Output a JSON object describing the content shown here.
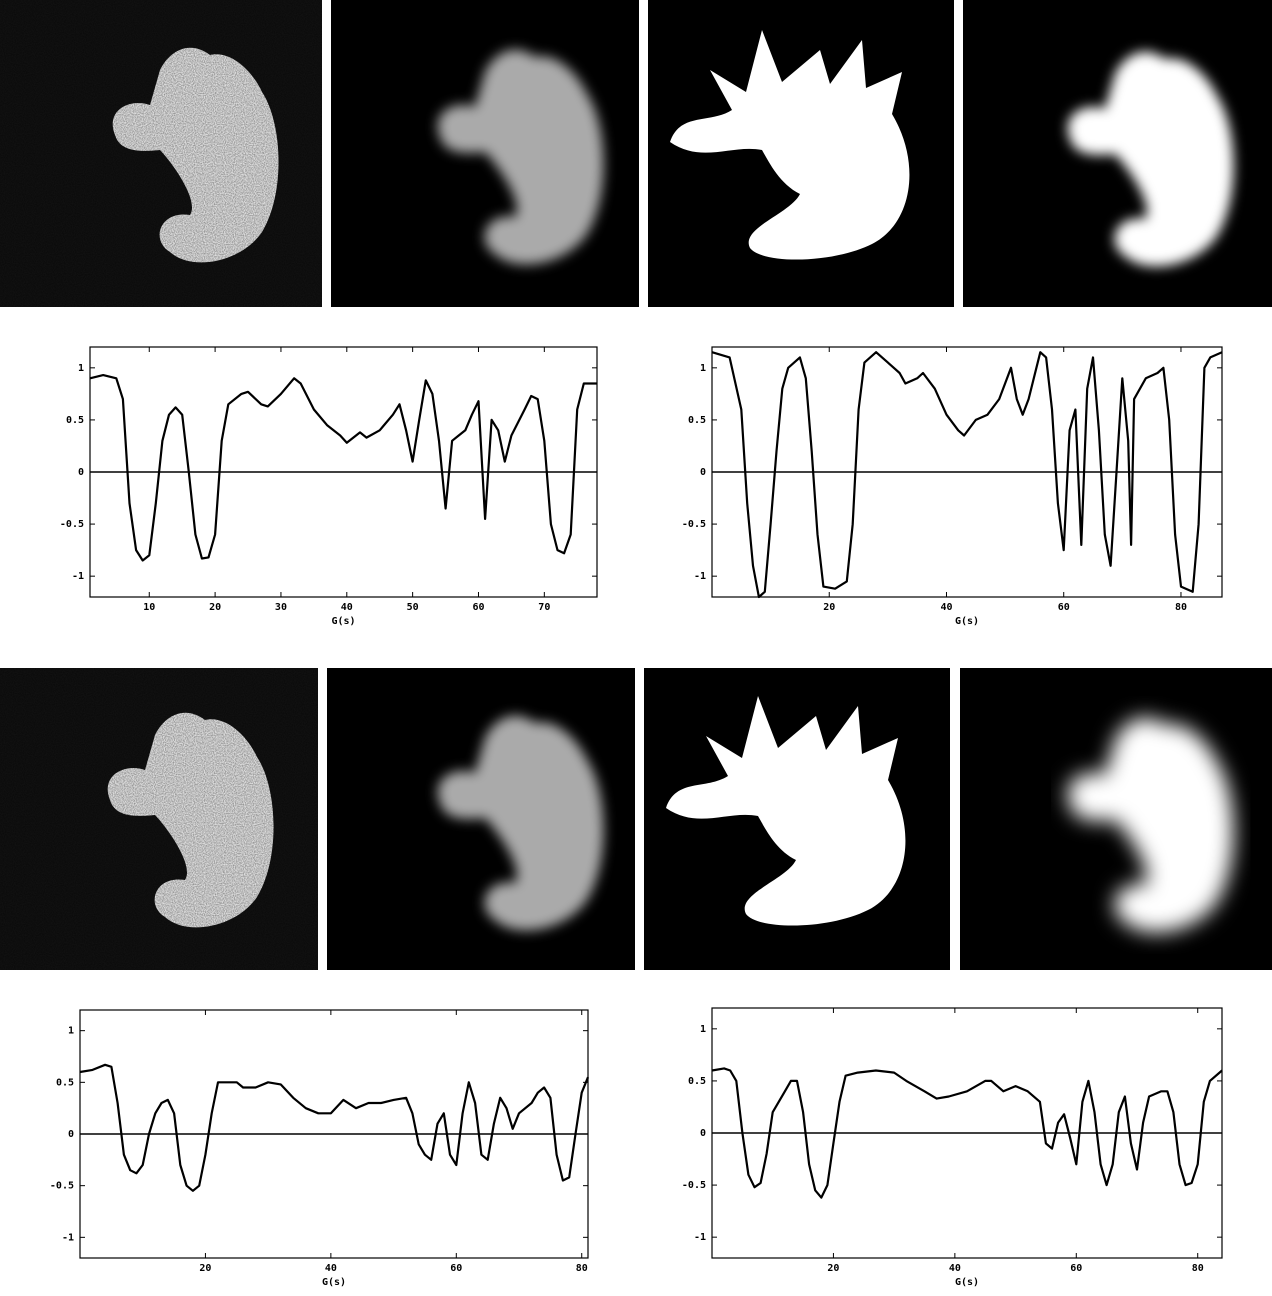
{
  "chart_data": [
    {
      "type": "line",
      "xlabel": "G(s)",
      "color": "#000000",
      "x": [
        1,
        3,
        5,
        6,
        7,
        8,
        9,
        10,
        11,
        12,
        13,
        14,
        15,
        16,
        17,
        18,
        19,
        20,
        21,
        22,
        24,
        25,
        27,
        28,
        30,
        32,
        33,
        35,
        37,
        39,
        40,
        42,
        43,
        45,
        47,
        48,
        49,
        50,
        51,
        52,
        53,
        54,
        55,
        56,
        57,
        58,
        59,
        60,
        61,
        62,
        63,
        64,
        65,
        67,
        68,
        69,
        70,
        71,
        72,
        73,
        74,
        75,
        76,
        78
      ],
      "values": [
        0.9,
        0.93,
        0.9,
        0.7,
        -0.3,
        -0.75,
        -0.85,
        -0.8,
        -0.3,
        0.3,
        0.55,
        0.62,
        0.55,
        0.0,
        -0.6,
        -0.83,
        -0.82,
        -0.6,
        0.3,
        0.65,
        0.75,
        0.77,
        0.65,
        0.63,
        0.75,
        0.9,
        0.85,
        0.6,
        0.45,
        0.35,
        0.28,
        0.38,
        0.33,
        0.4,
        0.55,
        0.65,
        0.4,
        0.1,
        0.5,
        0.88,
        0.75,
        0.3,
        -0.35,
        0.3,
        0.35,
        0.4,
        0.55,
        0.68,
        -0.45,
        0.5,
        0.4,
        0.1,
        0.35,
        0.6,
        0.73,
        0.7,
        0.3,
        -0.5,
        -0.75,
        -0.78,
        -0.6,
        0.6,
        0.85,
        0.85
      ],
      "xlim": [
        1,
        78
      ],
      "ylim": [
        -1.2,
        1.2
      ],
      "xticks": [
        10,
        20,
        30,
        40,
        50,
        60,
        70
      ],
      "yticks": [
        -1,
        -0.5,
        0,
        0.5,
        1
      ]
    },
    {
      "type": "line",
      "xlabel": "G(s)",
      "color": "#000000",
      "x": [
        0,
        3,
        5,
        6,
        7,
        8,
        9,
        10,
        11,
        12,
        13,
        15,
        16,
        17,
        18,
        19,
        21,
        23,
        24,
        25,
        26,
        28,
        30,
        32,
        33,
        35,
        36,
        38,
        40,
        42,
        43,
        45,
        47,
        49,
        51,
        52,
        53,
        54,
        56,
        57,
        58,
        59,
        60,
        61,
        62,
        63,
        64,
        65,
        66,
        67,
        68,
        69,
        70,
        71,
        71.5,
        72,
        74,
        76,
        77,
        78,
        79,
        80,
        82,
        83,
        84,
        85,
        87
      ],
      "values": [
        1.15,
        1.1,
        0.6,
        -0.3,
        -0.9,
        -1.2,
        -1.15,
        -0.5,
        0.2,
        0.8,
        1.0,
        1.1,
        0.9,
        0.2,
        -0.6,
        -1.1,
        -1.12,
        -1.05,
        -0.5,
        0.6,
        1.05,
        1.15,
        1.05,
        0.95,
        0.85,
        0.9,
        0.95,
        0.8,
        0.55,
        0.4,
        0.35,
        0.5,
        0.55,
        0.7,
        1.0,
        0.7,
        0.55,
        0.7,
        1.15,
        1.1,
        0.6,
        -0.3,
        -0.75,
        0.4,
        0.6,
        -0.7,
        0.8,
        1.1,
        0.4,
        -0.6,
        -0.9,
        0.0,
        0.9,
        0.3,
        -0.7,
        0.7,
        0.9,
        0.95,
        1.0,
        0.5,
        -0.6,
        -1.1,
        -1.15,
        -0.5,
        1.0,
        1.1,
        1.15
      ],
      "xlim": [
        0,
        87
      ],
      "ylim": [
        -1.2,
        1.2
      ],
      "xticks": [
        20,
        40,
        60,
        80
      ],
      "yticks": [
        -1,
        -0.5,
        0,
        0.5,
        1
      ]
    },
    {
      "type": "line",
      "xlabel": "G(s)",
      "color": "#000000",
      "x": [
        0,
        2,
        4,
        5,
        6,
        7,
        8,
        9,
        10,
        11,
        12,
        13,
        14,
        15,
        16,
        17,
        18,
        19,
        20,
        21,
        22,
        24,
        25,
        26,
        28,
        30,
        32,
        34,
        36,
        38,
        40,
        42,
        44,
        46,
        48,
        50,
        52,
        53,
        54,
        55,
        56,
        57,
        58,
        59,
        60,
        61,
        62,
        63,
        64,
        65,
        66,
        67,
        68,
        69,
        70,
        72,
        73,
        74,
        75,
        76,
        77,
        78,
        79,
        80,
        81
      ],
      "values": [
        0.6,
        0.62,
        0.67,
        0.65,
        0.3,
        -0.2,
        -0.35,
        -0.38,
        -0.3,
        0.0,
        0.2,
        0.3,
        0.33,
        0.2,
        -0.3,
        -0.5,
        -0.55,
        -0.5,
        -0.2,
        0.2,
        0.5,
        0.5,
        0.5,
        0.45,
        0.45,
        0.5,
        0.48,
        0.35,
        0.25,
        0.2,
        0.2,
        0.33,
        0.25,
        0.3,
        0.3,
        0.33,
        0.35,
        0.2,
        -0.1,
        -0.2,
        -0.25,
        0.1,
        0.2,
        -0.2,
        -0.3,
        0.2,
        0.5,
        0.3,
        -0.2,
        -0.25,
        0.1,
        0.35,
        0.25,
        0.05,
        0.2,
        0.3,
        0.4,
        0.45,
        0.35,
        -0.2,
        -0.45,
        -0.42,
        0.0,
        0.4,
        0.55
      ],
      "xlim": [
        0,
        81
      ],
      "ylim": [
        -1.2,
        1.2
      ],
      "xticks": [
        20,
        40,
        60,
        80
      ],
      "yticks": [
        -1,
        -0.5,
        0,
        0.5,
        1
      ]
    },
    {
      "type": "line",
      "xlabel": "G(s)",
      "color": "#000000",
      "x": [
        0,
        2,
        3,
        4,
        5,
        6,
        7,
        8,
        9,
        10,
        12,
        13,
        14,
        15,
        16,
        17,
        18,
        19,
        20,
        21,
        22,
        24,
        27,
        30,
        32,
        35,
        37,
        39,
        42,
        45,
        46,
        48,
        50,
        52,
        54,
        55,
        56,
        57,
        58,
        59,
        60,
        61,
        62,
        63,
        64,
        65,
        66,
        67,
        68,
        69,
        70,
        71,
        72,
        74,
        75,
        76,
        77,
        78,
        79,
        80,
        81,
        82,
        84
      ],
      "values": [
        0.6,
        0.62,
        0.6,
        0.5,
        0.0,
        -0.4,
        -0.52,
        -0.48,
        -0.2,
        0.2,
        0.4,
        0.5,
        0.5,
        0.2,
        -0.3,
        -0.55,
        -0.62,
        -0.5,
        -0.1,
        0.3,
        0.55,
        0.58,
        0.6,
        0.58,
        0.5,
        0.4,
        0.33,
        0.35,
        0.4,
        0.5,
        0.5,
        0.4,
        0.45,
        0.4,
        0.3,
        -0.1,
        -0.15,
        0.1,
        0.18,
        -0.05,
        -0.3,
        0.3,
        0.5,
        0.2,
        -0.3,
        -0.5,
        -0.3,
        0.2,
        0.35,
        -0.1,
        -0.35,
        0.1,
        0.35,
        0.4,
        0.4,
        0.2,
        -0.3,
        -0.5,
        -0.48,
        -0.3,
        0.3,
        0.5,
        0.6
      ],
      "xlim": [
        0,
        84
      ],
      "ylim": [
        -1.2,
        1.2
      ],
      "xticks": [
        20,
        40,
        60,
        80
      ],
      "yticks": [
        -1,
        -0.5,
        0,
        0.5,
        1
      ]
    }
  ]
}
